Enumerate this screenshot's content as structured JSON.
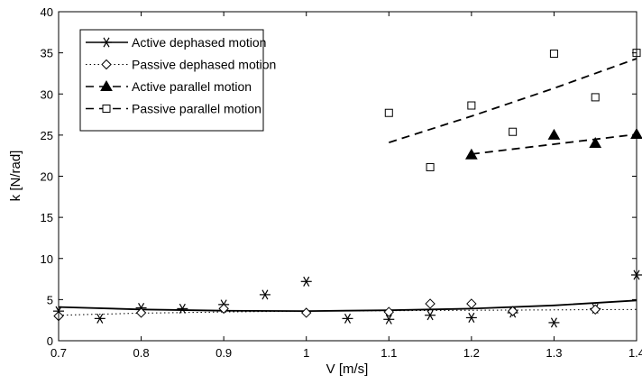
{
  "chart_data": {
    "type": "scatter",
    "title": "",
    "xlabel": "V [m/s]",
    "ylabel": "k [N/rad]",
    "xlim": [
      0.7,
      1.4
    ],
    "ylim": [
      0,
      40
    ],
    "xticks": [
      0.7,
      0.8,
      0.9,
      1,
      1.1,
      1.2,
      1.3,
      1.4
    ],
    "xtick_labels": [
      "0.7",
      "0.8",
      "0.9",
      "1",
      "1.1",
      "1.2",
      "1.3",
      "1.4"
    ],
    "yticks": [
      0,
      5,
      10,
      15,
      20,
      25,
      30,
      35,
      40
    ],
    "ytick_labels": [
      "0",
      "5",
      "10",
      "15",
      "20",
      "25",
      "30",
      "35",
      "40"
    ],
    "grid": false,
    "legend_position": "top-left",
    "legend": [
      {
        "label": "Active dephased motion",
        "marker": "asterisk",
        "line": "solid"
      },
      {
        "label": "Passive dephased motion",
        "marker": "diamond",
        "line": "dotted"
      },
      {
        "label": "Active parallel motion",
        "marker": "triangle",
        "line": "dashed"
      },
      {
        "label": "Passive parallel motion",
        "marker": "square",
        "line": "dashed"
      }
    ],
    "series": [
      {
        "name": "Active dephased motion",
        "marker": "asterisk",
        "points": [
          [
            0.7,
            3.6
          ],
          [
            0.75,
            2.7
          ],
          [
            0.8,
            4.0
          ],
          [
            0.85,
            3.9
          ],
          [
            0.9,
            4.4
          ],
          [
            0.95,
            5.6
          ],
          [
            1.0,
            7.2
          ],
          [
            1.05,
            2.7
          ],
          [
            1.1,
            2.6
          ],
          [
            1.15,
            3.1
          ],
          [
            1.2,
            2.8
          ],
          [
            1.25,
            3.4
          ],
          [
            1.3,
            2.2
          ],
          [
            1.35,
            3.9
          ],
          [
            1.4,
            8.0
          ]
        ],
        "fit": {
          "style": "solid",
          "points": [
            [
              0.7,
              4.1
            ],
            [
              0.8,
              3.8
            ],
            [
              0.9,
              3.65
            ],
            [
              1.0,
              3.6
            ],
            [
              1.1,
              3.7
            ],
            [
              1.2,
              3.9
            ],
            [
              1.3,
              4.3
            ],
            [
              1.4,
              4.9
            ]
          ]
        }
      },
      {
        "name": "Passive dephased motion",
        "marker": "diamond",
        "points": [
          [
            0.7,
            3.0
          ],
          [
            0.8,
            3.4
          ],
          [
            0.9,
            3.9
          ],
          [
            1.0,
            3.4
          ],
          [
            1.1,
            3.5
          ],
          [
            1.15,
            4.5
          ],
          [
            1.2,
            4.5
          ],
          [
            1.25,
            3.6
          ],
          [
            1.35,
            3.8
          ]
        ],
        "fit": {
          "style": "dotted",
          "points": [
            [
              0.7,
              3.1
            ],
            [
              0.8,
              3.35
            ],
            [
              0.9,
              3.5
            ],
            [
              1.0,
              3.6
            ],
            [
              1.1,
              3.65
            ],
            [
              1.2,
              3.7
            ],
            [
              1.3,
              3.75
            ],
            [
              1.4,
              3.8
            ]
          ]
        }
      },
      {
        "name": "Active parallel motion",
        "marker": "triangle",
        "points": [
          [
            1.2,
            22.6
          ],
          [
            1.3,
            25.0
          ],
          [
            1.35,
            24.0
          ],
          [
            1.4,
            25.1
          ]
        ],
        "fit": {
          "style": "dashed",
          "points": [
            [
              1.2,
              22.7
            ],
            [
              1.4,
              25.1
            ]
          ]
        }
      },
      {
        "name": "Passive parallel motion",
        "marker": "square",
        "points": [
          [
            1.1,
            27.7
          ],
          [
            1.15,
            21.1
          ],
          [
            1.2,
            28.6
          ],
          [
            1.25,
            25.4
          ],
          [
            1.3,
            34.9
          ],
          [
            1.35,
            29.6
          ],
          [
            1.4,
            35.0
          ]
        ],
        "fit": {
          "style": "dashed",
          "points": [
            [
              1.1,
              24.1
            ],
            [
              1.2,
              27.3
            ],
            [
              1.3,
              30.7
            ],
            [
              1.4,
              34.3
            ]
          ]
        }
      }
    ]
  }
}
